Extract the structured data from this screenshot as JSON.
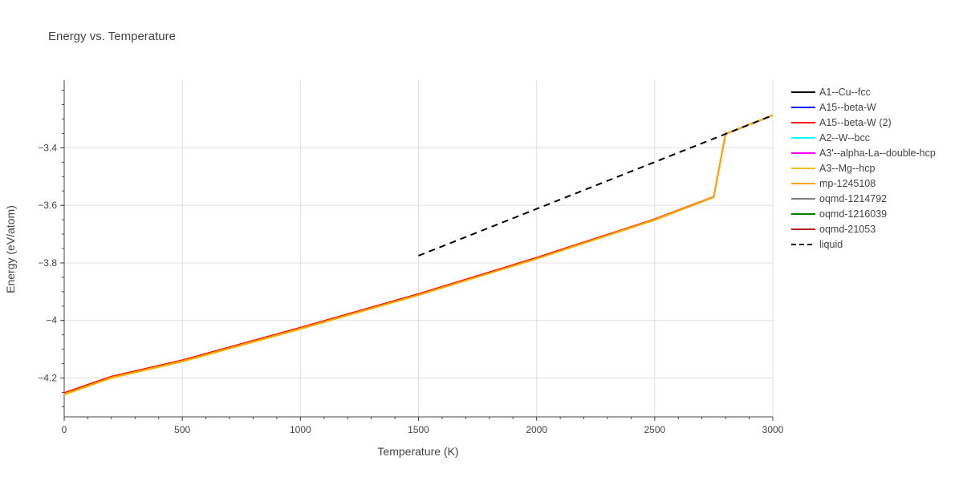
{
  "chart_data": {
    "type": "line",
    "title": "Energy vs. Temperature",
    "xlabel": "Temperature (K)",
    "ylabel": "Energy (eV/atom)",
    "xlim": [
      0,
      3000
    ],
    "ylim": [
      -4.335,
      -3.165
    ],
    "x_ticks": [
      0,
      500,
      1000,
      1500,
      2000,
      2500,
      3000
    ],
    "x_tick_labels": [
      "0",
      "500",
      "1000",
      "1500",
      "2000",
      "2500",
      "3000"
    ],
    "y_ticks": [
      -4.2,
      -4.0,
      -3.8,
      -3.6,
      -3.4
    ],
    "y_tick_labels": [
      "−4.2",
      "−4",
      "−3.8",
      "−3.6",
      "−3.4"
    ],
    "grid": true,
    "legend_position": "right",
    "series": [
      {
        "name": "A1--Cu--fcc",
        "color": "#000000",
        "dash": "solid",
        "x": [],
        "y": []
      },
      {
        "name": "A15--beta-W",
        "color": "#0000ff",
        "dash": "solid",
        "x": [],
        "y": []
      },
      {
        "name": "A15--beta-W (2)",
        "color": "#ff0000",
        "dash": "solid",
        "x": [
          0,
          200,
          500,
          1000,
          1500,
          2000,
          2500,
          2750,
          2800,
          3000
        ],
        "y": [
          -4.252,
          -4.195,
          -4.138,
          -4.025,
          -3.908,
          -3.782,
          -3.648,
          -3.57,
          -3.352,
          -3.287
        ]
      },
      {
        "name": "A2--W--bcc",
        "color": "#00ffff",
        "dash": "solid",
        "x": [],
        "y": []
      },
      {
        "name": "A3'--alpha-La--double-hcp",
        "color": "#ff00ff",
        "dash": "solid",
        "x": [],
        "y": []
      },
      {
        "name": "A3--Mg--hcp",
        "color": "#f0c020",
        "dash": "solid",
        "x": [
          0,
          200,
          500,
          1000,
          1500,
          2000,
          2500,
          2750,
          2800,
          3000
        ],
        "y": [
          -4.258,
          -4.2,
          -4.143,
          -4.03,
          -3.912,
          -3.786,
          -3.651,
          -3.572,
          -3.352,
          -3.287
        ]
      },
      {
        "name": "mp-1245108",
        "color": "#ffa500",
        "dash": "solid",
        "x": [
          0,
          200,
          500,
          1000,
          1500,
          2000,
          2500,
          2750,
          2800,
          3000
        ],
        "y": [
          -4.256,
          -4.198,
          -4.141,
          -4.028,
          -3.911,
          -3.785,
          -3.65,
          -3.571,
          -3.352,
          -3.287
        ]
      },
      {
        "name": "oqmd-1214792",
        "color": "#808080",
        "dash": "solid",
        "x": [],
        "y": []
      },
      {
        "name": "oqmd-1216039",
        "color": "#008000",
        "dash": "solid",
        "x": [],
        "y": []
      },
      {
        "name": "oqmd-21053",
        "color": "#b22222",
        "dash": "solid",
        "x": [],
        "y": []
      },
      {
        "name": "liquid",
        "color": "#000000",
        "dash": "dash",
        "x": [
          1500,
          2800,
          3000
        ],
        "y": [
          -3.775,
          -3.352,
          -3.287
        ]
      }
    ]
  }
}
